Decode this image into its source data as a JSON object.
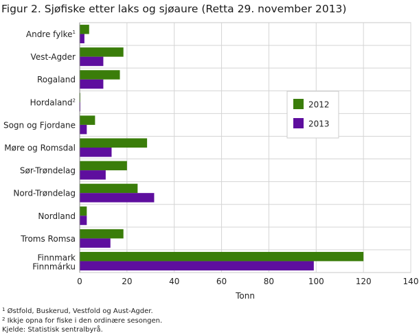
{
  "title": "Figur 2. Sjøfiske etter laks og sjøaure (Retta 29. november 2013)",
  "chart_data": {
    "type": "bar",
    "orientation": "horizontal",
    "title": "Figur 2. Sjøfiske etter laks og sjøaure (Retta 29. november 2013)",
    "xlabel": "Tonn",
    "ylabel": "",
    "xlim": [
      0,
      140
    ],
    "xticks": [
      0,
      20,
      40,
      60,
      80,
      100,
      120,
      140
    ],
    "grid": true,
    "legend_position": "right",
    "categories": [
      {
        "label": "Andre fylke",
        "sup": "1"
      },
      {
        "label": "Vest-Agder"
      },
      {
        "label": "Rogaland"
      },
      {
        "label": "Hordaland",
        "sup": "2"
      },
      {
        "label": "Sogn og Fjordane"
      },
      {
        "label": "Møre og Romsdal"
      },
      {
        "label": "Sør-Trøndelag"
      },
      {
        "label": "Nord-Trøndelag"
      },
      {
        "label": "Nordland"
      },
      {
        "label": "Troms Romsa"
      },
      {
        "label": "Finnmark",
        "label2": "Finnmárku"
      }
    ],
    "series": [
      {
        "name": "2012",
        "color": "#3a7d0a",
        "values": [
          4,
          18.5,
          17,
          0,
          6.5,
          28.5,
          20,
          24.5,
          3,
          18.5,
          120
        ]
      },
      {
        "name": "2013",
        "color": "#5e0e9e",
        "values": [
          2,
          10,
          10,
          0,
          3,
          13.5,
          11,
          31.5,
          3,
          13,
          99
        ]
      }
    ]
  },
  "footnotes": {
    "note1_mark": "1",
    "note1_text": "Østfold, Buskerud, Vestfold og Aust-Agder.",
    "note2_mark": "2",
    "note2_text": "Ikkje opna for fiske i den ordinære sesongen.",
    "source": "Kjelde: Statistisk sentralbyrå."
  }
}
